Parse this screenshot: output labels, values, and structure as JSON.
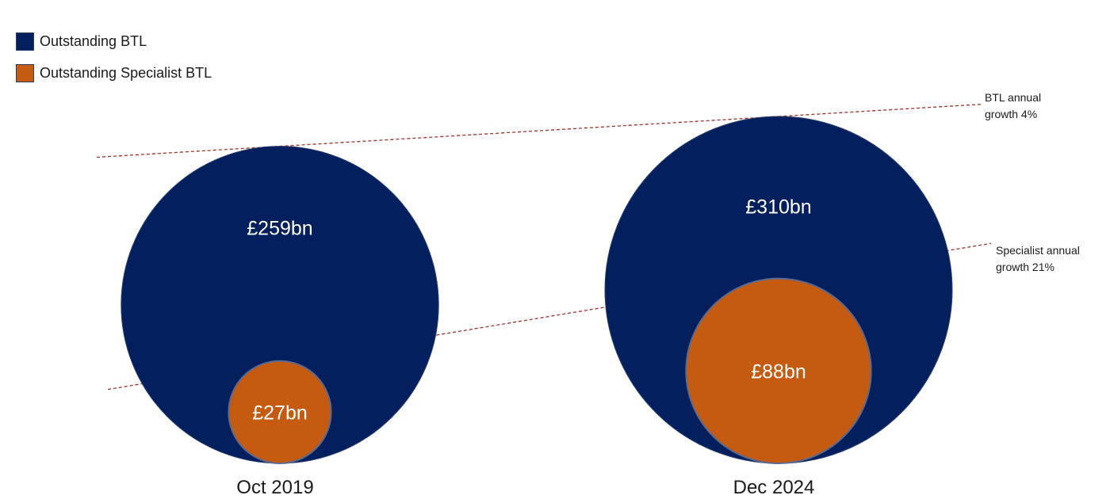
{
  "legend": {
    "items": [
      {
        "label": "Outstanding BTL",
        "color": "#031f5e"
      },
      {
        "label": "Outstanding Specialist BTL",
        "color": "#c55a11"
      }
    ]
  },
  "annotations": {
    "btl_growth": "BTL annual growth 4%",
    "specialist_growth": "Specialist annual growth 21%"
  },
  "chart_data": {
    "type": "bubble",
    "unit": "£bn",
    "periods": [
      "Oct 2019",
      "Dec 2024"
    ],
    "series": [
      {
        "name": "Outstanding BTL",
        "color": "#031f5e",
        "values": [
          259,
          310
        ],
        "labels": [
          "£259bn",
          "£310bn"
        ]
      },
      {
        "name": "Outstanding Specialist BTL",
        "color": "#c55a11",
        "values": [
          27,
          88
        ],
        "labels": [
          "£27bn",
          "£88bn"
        ]
      }
    ],
    "trend_lines": [
      {
        "series": "Outstanding BTL",
        "label": "BTL annual growth 4%",
        "annual_growth_pct": 4
      },
      {
        "series": "Outstanding Specialist BTL",
        "label": "Specialist annual growth 21%",
        "annual_growth_pct": 21
      }
    ]
  }
}
